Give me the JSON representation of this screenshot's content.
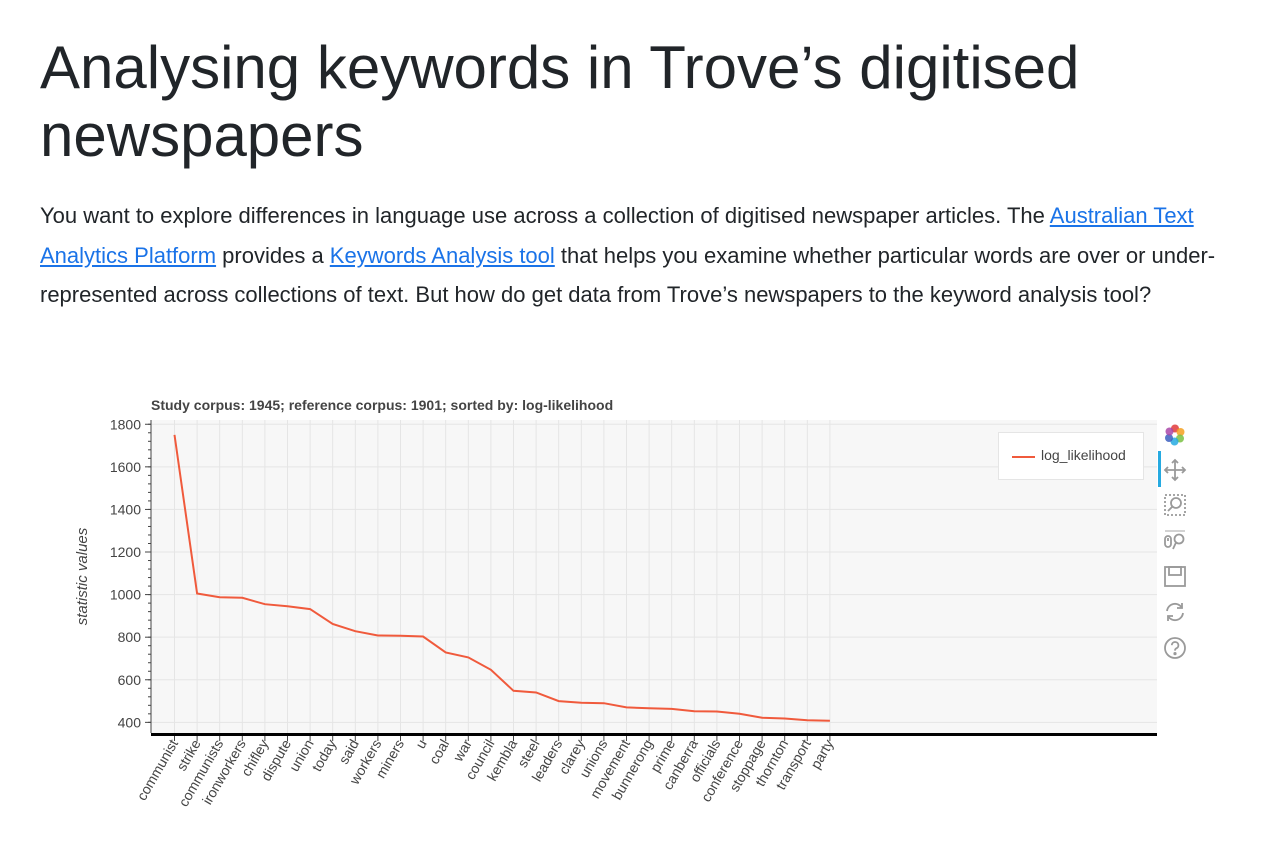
{
  "page": {
    "title": "Analysing keywords in Trove’s digitised newspapers",
    "intro": {
      "text_1": "You want to explore differences in language use across a collection of digitised newspaper articles. The ",
      "link_1": "Australian Text Analytics Platform",
      "text_2": " provides a ",
      "link_2": "Keywords Analysis tool",
      "text_3": " that helps you examine whether particular words are over or under-represented across collections of text. But how do get data from Trove’s newspapers to the keyword analysis tool?"
    }
  },
  "toolbar": {
    "tools": [
      "bokeh-logo-icon",
      "pan-icon",
      "box-zoom-icon",
      "wheel-zoom-icon",
      "save-icon",
      "reset-icon",
      "help-icon"
    ]
  },
  "chart_data": {
    "type": "line",
    "title": "Study corpus: 1945; reference corpus: 1901; sorted by: log-likelihood",
    "ylabel": "statistic values",
    "xlabel": "",
    "ylim": [
      350,
      1820
    ],
    "yticks": [
      400,
      600,
      800,
      1000,
      1200,
      1400,
      1600,
      1800
    ],
    "grid": true,
    "legend_position": "top-right",
    "categories": [
      "communist",
      "strike",
      "communists",
      "ironworkers",
      "chifley",
      "dispute",
      "union",
      "today",
      "said",
      "workers",
      "miners",
      "u",
      "coal",
      "war",
      "council",
      "kembla",
      "steel",
      "leaders",
      "clarey",
      "unions",
      "movement",
      "bunnerong",
      "prime",
      "canberra",
      "officials",
      "conference",
      "stoppage",
      "thornton",
      "transport",
      "party"
    ],
    "series": [
      {
        "name": "log_likelihood",
        "color": "#f05a3c",
        "values": [
          1750,
          1005,
          988,
          985,
          955,
          945,
          932,
          862,
          828,
          808,
          807,
          803,
          728,
          705,
          647,
          548,
          540,
          500,
          492,
          490,
          470,
          466,
          463,
          452,
          451,
          440,
          422,
          418,
          410,
          408
        ]
      }
    ]
  }
}
